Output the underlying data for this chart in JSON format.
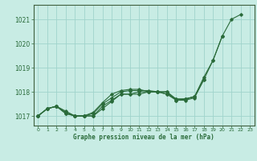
{
  "title": "Graphe pression niveau de la mer (hPa)",
  "background_color": "#c8ece4",
  "grid_color": "#a0d4cc",
  "line_color": "#2a6b3a",
  "spine_color": "#406040",
  "xlim": [
    -0.5,
    23.5
  ],
  "ylim": [
    1016.6,
    1021.6
  ],
  "yticks": [
    1017,
    1018,
    1019,
    1020,
    1021
  ],
  "xtick_labels": [
    "0",
    "1",
    "2",
    "3",
    "4",
    "5",
    "6",
    "7",
    "8",
    "9",
    "10",
    "11",
    "12",
    "13",
    "14",
    "15",
    "16",
    "17",
    "18",
    "19",
    "20",
    "21",
    "22",
    "23"
  ],
  "series": [
    [
      1017.0,
      1017.3,
      1017.4,
      1017.2,
      1017.0,
      1017.0,
      1017.0,
      1017.3,
      1017.6,
      1017.9,
      1017.9,
      1017.9,
      1018.0,
      1018.0,
      1018.0,
      1017.7,
      1017.7,
      1017.8,
      1018.5,
      1019.3,
      1020.3,
      1021.0,
      1021.2,
      null
    ],
    [
      1017.0,
      1017.3,
      1017.4,
      1017.1,
      1017.0,
      1017.0,
      1017.0,
      1017.4,
      1017.65,
      1017.9,
      1017.9,
      1018.0,
      1018.0,
      1018.0,
      1017.9,
      1017.65,
      1017.7,
      1017.8,
      1018.6,
      1019.3,
      1020.3,
      null,
      null,
      null
    ],
    [
      1017.0,
      1017.3,
      1017.4,
      1017.15,
      1017.0,
      1017.0,
      1017.1,
      1017.5,
      1017.75,
      1018.0,
      1018.05,
      1018.05,
      1018.05,
      1018.0,
      1018.0,
      1017.65,
      1017.65,
      1017.75,
      1018.5,
      null,
      null,
      null,
      null,
      null
    ],
    [
      1017.0,
      1017.3,
      1017.4,
      1017.1,
      1017.0,
      1017.0,
      1017.15,
      1017.55,
      1017.9,
      1018.05,
      1018.1,
      1018.1,
      1018.0,
      1018.0,
      1017.9,
      1017.7,
      1017.7,
      1017.8,
      null,
      null,
      null,
      null,
      null,
      null
    ]
  ]
}
